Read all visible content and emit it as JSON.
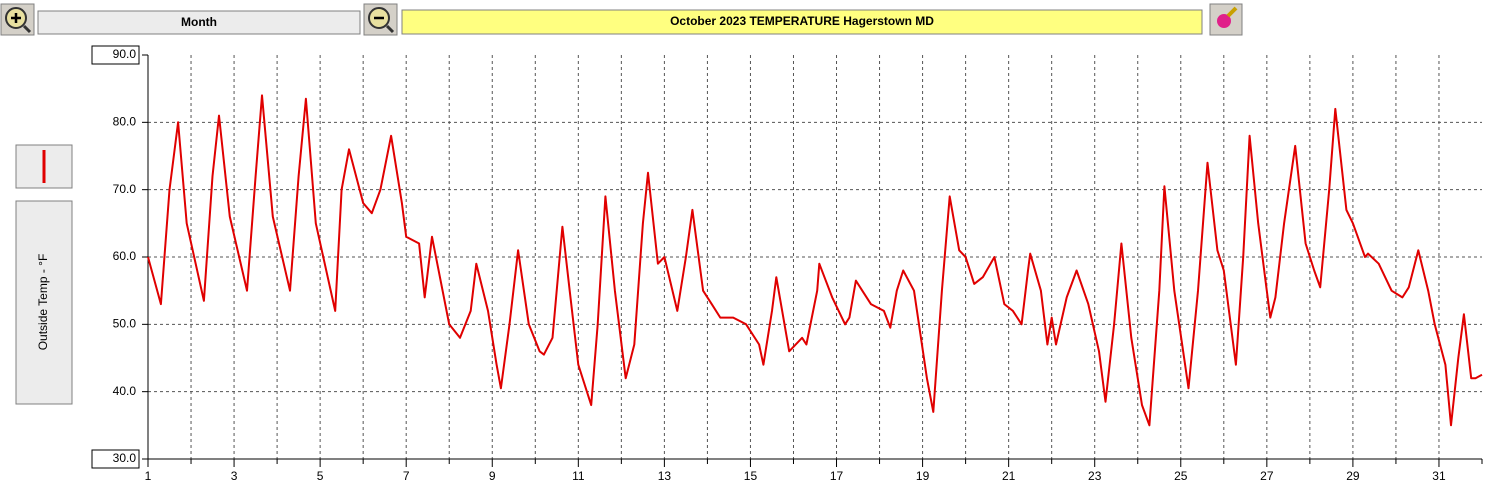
{
  "toolbar": {
    "period": "Month"
  },
  "chart_data": {
    "type": "line",
    "title": "October  2023   TEMPERATURE  Hagerstown MD",
    "ylabel": "Outside Temp - °F",
    "xlim": [
      1,
      32
    ],
    "xticks": [
      1,
      3,
      5,
      7,
      9,
      11,
      13,
      15,
      17,
      19,
      21,
      23,
      25,
      27,
      29,
      31
    ],
    "x_minor_ticks": [
      2,
      4,
      6,
      8,
      10,
      12,
      14,
      16,
      18,
      20,
      22,
      24,
      26,
      28,
      30,
      32
    ],
    "ylim": [
      30,
      90
    ],
    "yticks": [
      {
        "value": 30,
        "label": "30.0"
      },
      {
        "value": 40,
        "label": "40.0"
      },
      {
        "value": 50,
        "label": "50.0"
      },
      {
        "value": 60,
        "label": "60.0"
      },
      {
        "value": 70,
        "label": "70.0"
      },
      {
        "value": 80,
        "label": "80.0"
      },
      {
        "value": 90,
        "label": "90.0"
      }
    ],
    "grid": true,
    "series": [
      {
        "color": "#e00000",
        "x": [
          1.0,
          1.3,
          1.5,
          1.7,
          1.9,
          2.3,
          2.5,
          2.65,
          2.9,
          3.3,
          3.5,
          3.65,
          3.9,
          4.3,
          4.5,
          4.67,
          4.9,
          5.35,
          5.5,
          5.67,
          6.0,
          6.2,
          6.4,
          6.65,
          6.9,
          7.0,
          7.3,
          7.43,
          7.6,
          8.0,
          8.25,
          8.5,
          8.63,
          8.9,
          9.1,
          9.2,
          9.4,
          9.6,
          9.85,
          10.1,
          10.2,
          10.4,
          10.63,
          10.8,
          11.0,
          11.3,
          11.45,
          11.63,
          11.85,
          12.1,
          12.3,
          12.5,
          12.62,
          12.85,
          13.0,
          13.3,
          13.5,
          13.65,
          13.9,
          14.1,
          14.3,
          14.6,
          14.9,
          15.2,
          15.3,
          15.5,
          15.6,
          15.9,
          16.2,
          16.3,
          16.55,
          16.6,
          16.9,
          17.2,
          17.3,
          17.45,
          17.6,
          17.8,
          18.1,
          18.25,
          18.4,
          18.55,
          18.8,
          19.1,
          19.25,
          19.45,
          19.63,
          19.85,
          20.0,
          20.2,
          20.4,
          20.67,
          20.9,
          21.1,
          21.3,
          21.45,
          21.5,
          21.75,
          21.9,
          22.0,
          22.1,
          22.35,
          22.58,
          22.85,
          23.1,
          23.25,
          23.45,
          23.62,
          23.85,
          24.1,
          24.27,
          24.5,
          24.62,
          24.85,
          25.1,
          25.18,
          25.4,
          25.62,
          25.85,
          26.0,
          26.28,
          26.45,
          26.6,
          26.8,
          27.0,
          27.08,
          27.2,
          27.4,
          27.66,
          27.9,
          28.1,
          28.24,
          28.45,
          28.59,
          28.85,
          29.0,
          29.28,
          29.35,
          29.6,
          29.9,
          30.15,
          30.3,
          30.52,
          30.75,
          30.9,
          31.15,
          31.28,
          31.45,
          31.58,
          31.75,
          31.85,
          32.0
        ],
        "values": [
          60,
          53,
          70,
          80,
          65,
          53.5,
          72,
          81,
          66,
          55,
          72,
          84,
          66,
          55,
          72,
          83.5,
          65,
          52,
          70,
          76,
          68,
          66.5,
          70,
          78,
          68,
          63,
          62,
          54,
          63,
          50,
          48,
          52,
          59,
          52,
          44,
          40.5,
          50,
          61,
          50,
          46,
          45.5,
          48,
          64.5,
          55,
          44,
          38,
          50,
          69,
          55,
          42,
          47,
          65,
          72.5,
          59,
          60,
          52,
          60,
          67,
          55,
          53,
          51,
          51,
          50,
          47,
          44,
          52,
          57,
          46,
          48,
          47,
          55,
          59,
          54,
          50,
          51,
          56.5,
          55,
          53,
          52,
          49.5,
          55,
          58,
          55,
          42,
          37,
          55,
          69,
          61,
          60,
          56,
          57,
          60,
          53,
          52,
          50,
          58,
          60.5,
          55,
          47,
          51,
          47,
          54,
          58,
          53,
          46,
          38.5,
          50,
          62,
          48,
          38,
          35,
          55,
          70.5,
          55,
          44,
          40.5,
          55,
          74,
          61,
          58,
          44,
          60,
          78,
          65,
          55,
          51,
          54,
          65,
          76.5,
          62,
          58,
          55.5,
          70,
          82,
          67,
          65,
          60,
          60.5,
          59,
          55,
          54,
          55.5,
          61,
          55,
          50,
          44,
          35,
          45,
          51.5,
          42,
          42,
          42.5
        ]
      }
    ]
  }
}
